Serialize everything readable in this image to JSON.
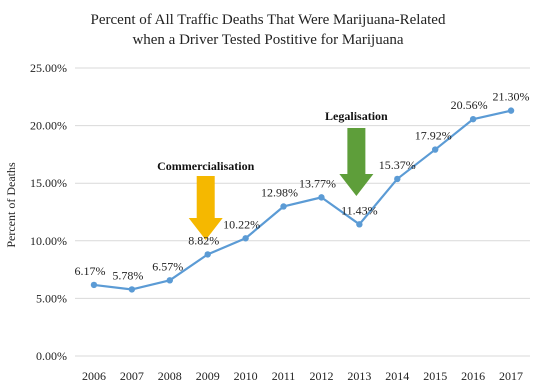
{
  "chart_data": {
    "type": "line",
    "title": [
      "Percent of All Traffic Deaths That Were Marijuana-Related",
      "when a Driver Tested Postitive for Marijuana"
    ],
    "ylabel": "Percent of Deaths",
    "xlabel": "",
    "ylim": [
      0,
      25
    ],
    "yticks": [
      "0.00%",
      "5.00%",
      "10.00%",
      "15.00%",
      "20.00%",
      "25.00%"
    ],
    "grid": true,
    "categories": [
      "2006",
      "2007",
      "2008",
      "2009",
      "2010",
      "2011",
      "2012",
      "2013",
      "2014",
      "2015",
      "2016",
      "2017"
    ],
    "values": [
      6.17,
      5.78,
      6.57,
      8.82,
      10.22,
      12.98,
      13.77,
      11.43,
      15.37,
      17.92,
      20.56,
      21.3
    ],
    "data_labels": [
      "6.17%",
      "5.78%",
      "6.57%",
      "8.82%",
      "10.22%",
      "12.98%",
      "13.77%",
      "11.43%",
      "15.37%",
      "17.92%",
      "20.56%",
      "21.30%"
    ],
    "series_color": "#5b9bd5",
    "annotations": [
      {
        "text": "Commercialisation",
        "category": "2009",
        "arrow_color": "#f5b800"
      },
      {
        "text": "Legalisation",
        "category": "2013",
        "arrow_color": "#5e9e3a"
      }
    ]
  }
}
